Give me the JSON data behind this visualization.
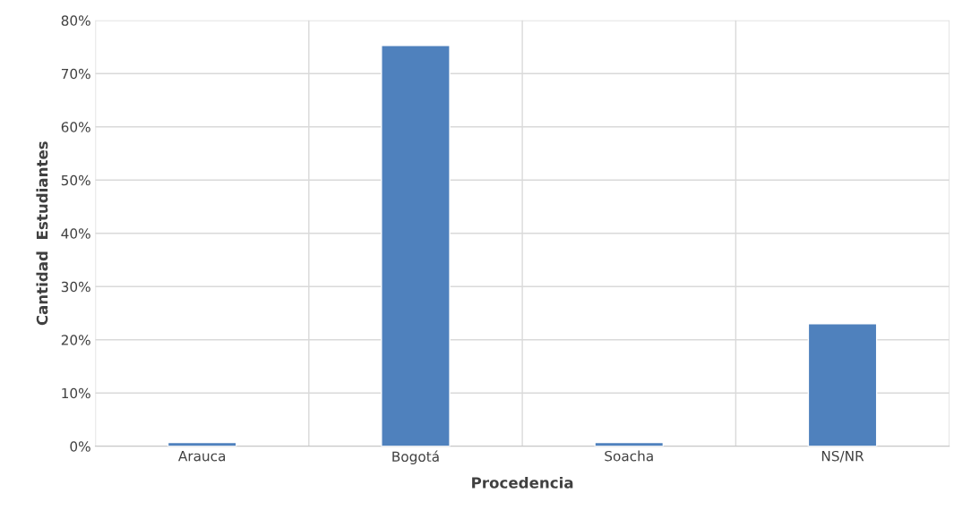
{
  "chart_data": {
    "type": "bar",
    "xlabel": "Procedencia",
    "ylabel": "Cantidad  Estudiantes",
    "categories": [
      "Arauca",
      "Bogotá",
      "Soacha",
      "NS/NR"
    ],
    "values": [
      0.7,
      75.3,
      0.7,
      23.0
    ],
    "color": "#4f81bd",
    "ylim": [
      0,
      80
    ],
    "yticks": [
      {
        "value": 0,
        "label": "0%"
      },
      {
        "value": 10,
        "label": "10%"
      },
      {
        "value": 20,
        "label": "20%"
      },
      {
        "value": 30,
        "label": "30%"
      },
      {
        "value": 40,
        "label": "40%"
      },
      {
        "value": 50,
        "label": "50%"
      },
      {
        "value": 60,
        "label": "60%"
      },
      {
        "value": 70,
        "label": "70%"
      },
      {
        "value": 80,
        "label": "80%"
      }
    ],
    "grid": true
  }
}
